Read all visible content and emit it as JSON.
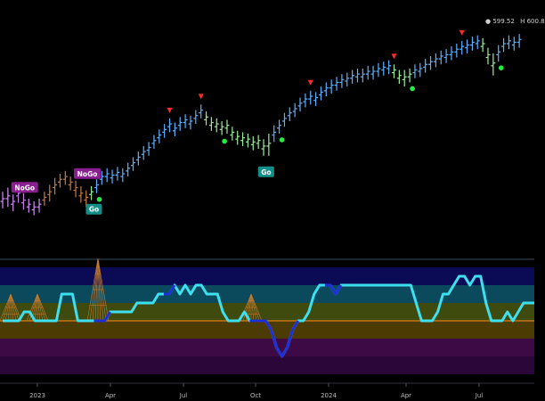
{
  "header": {
    "price_labels": [
      "599.52",
      "600.8"
    ]
  },
  "chart_data": [
    {
      "type": "ohlc",
      "panel": "price",
      "signals": {
        "nogo": [
          {
            "label": "NoGo",
            "i": 2
          },
          {
            "label": "NoGo",
            "i": 14
          }
        ],
        "go": [
          {
            "label": "Go",
            "i": 18
          },
          {
            "label": "Go",
            "i": 51
          }
        ],
        "green_dots": [
          18,
          42,
          53,
          78,
          95
        ],
        "red_triangles": [
          32,
          38,
          59,
          75,
          88
        ]
      },
      "bars": [
        {
          "c": 498,
          "r": 6,
          "col": "#d58bff"
        },
        {
          "c": 500,
          "r": 7,
          "col": "#d58bff"
        },
        {
          "c": 496,
          "r": 6,
          "col": "#d58bff"
        },
        {
          "c": 502,
          "r": 6,
          "col": "#c47be6"
        },
        {
          "c": 497,
          "r": 6,
          "col": "#c47be6"
        },
        {
          "c": 494,
          "r": 5,
          "col": "#d58bff"
        },
        {
          "c": 492,
          "r": 5,
          "col": "#d58bff"
        },
        {
          "c": 494,
          "r": 5,
          "col": "#d58bff"
        },
        {
          "c": 499,
          "r": 5,
          "col": "#c97a3a"
        },
        {
          "c": 503,
          "r": 6,
          "col": "#c97a3a"
        },
        {
          "c": 508,
          "r": 6,
          "col": "#c97a3a"
        },
        {
          "c": 512,
          "r": 5,
          "col": "#c97a3a"
        },
        {
          "c": 514,
          "r": 5,
          "col": "#c97a3a"
        },
        {
          "c": 510,
          "r": 5,
          "col": "#c97a3a"
        },
        {
          "c": 506,
          "r": 6,
          "col": "#c97a3a"
        },
        {
          "c": 502,
          "r": 6,
          "col": "#c97a3a"
        },
        {
          "c": 499,
          "r": 6,
          "col": "#c97a3a"
        },
        {
          "c": 503,
          "r": 5,
          "col": "#9aee9a"
        },
        {
          "c": 508,
          "r": 5,
          "col": "#59b2ff"
        },
        {
          "c": 514,
          "r": 5,
          "col": "#59b2ff"
        },
        {
          "c": 516,
          "r": 5,
          "col": "#59b2ff"
        },
        {
          "c": 515,
          "r": 5,
          "col": "#59b2ff"
        },
        {
          "c": 517,
          "r": 5,
          "col": "#59b2ff"
        },
        {
          "c": 516,
          "r": 5,
          "col": "#59b2ff"
        },
        {
          "c": 520,
          "r": 5,
          "col": "#59b2ff"
        },
        {
          "c": 524,
          "r": 5,
          "col": "#59b2ff"
        },
        {
          "c": 528,
          "r": 5,
          "col": "#59b2ff"
        },
        {
          "c": 532,
          "r": 5,
          "col": "#59b2ff"
        },
        {
          "c": 535,
          "r": 5,
          "col": "#59b2ff"
        },
        {
          "c": 540,
          "r": 5,
          "col": "#59b2ff"
        },
        {
          "c": 544,
          "r": 5,
          "col": "#59b2ff"
        },
        {
          "c": 548,
          "r": 5,
          "col": "#59b2ff"
        },
        {
          "c": 552,
          "r": 5,
          "col": "#59b2ff"
        },
        {
          "c": 549,
          "r": 5,
          "col": "#59b2ff"
        },
        {
          "c": 553,
          "r": 5,
          "col": "#59b2ff"
        },
        {
          "c": 555,
          "r": 5,
          "col": "#59b2ff"
        },
        {
          "c": 554,
          "r": 5,
          "col": "#59b2ff"
        },
        {
          "c": 558,
          "r": 5,
          "col": "#59b2ff"
        },
        {
          "c": 562,
          "r": 5,
          "col": "#59b2ff"
        },
        {
          "c": 557,
          "r": 5,
          "col": "#9aee9a"
        },
        {
          "c": 553,
          "r": 5,
          "col": "#9aee9a"
        },
        {
          "c": 552,
          "r": 5,
          "col": "#9aee9a"
        },
        {
          "c": 550,
          "r": 5,
          "col": "#9aee9a"
        },
        {
          "c": 551,
          "r": 5,
          "col": "#9aee9a"
        },
        {
          "c": 546,
          "r": 5,
          "col": "#9aee9a"
        },
        {
          "c": 543,
          "r": 5,
          "col": "#9aee9a"
        },
        {
          "c": 542,
          "r": 5,
          "col": "#9aee9a"
        },
        {
          "c": 541,
          "r": 5,
          "col": "#9aee9a"
        },
        {
          "c": 539,
          "r": 5,
          "col": "#9aee9a"
        },
        {
          "c": 540,
          "r": 5,
          "col": "#9aee9a"
        },
        {
          "c": 536,
          "r": 6,
          "col": "#9aee9a"
        },
        {
          "c": 538,
          "r": 8,
          "col": "#9aee9a"
        },
        {
          "c": 546,
          "r": 6,
          "col": "#59b2ff"
        },
        {
          "c": 551,
          "r": 5,
          "col": "#59b2ff"
        },
        {
          "c": 556,
          "r": 5,
          "col": "#59b2ff"
        },
        {
          "c": 560,
          "r": 5,
          "col": "#59b2ff"
        },
        {
          "c": 563,
          "r": 5,
          "col": "#59b2ff"
        },
        {
          "c": 567,
          "r": 5,
          "col": "#59b2ff"
        },
        {
          "c": 570,
          "r": 5,
          "col": "#59b2ff"
        },
        {
          "c": 572,
          "r": 5,
          "col": "#59b2ff"
        },
        {
          "c": 571,
          "r": 5,
          "col": "#59b2ff"
        },
        {
          "c": 575,
          "r": 5,
          "col": "#59b2ff"
        },
        {
          "c": 578,
          "r": 5,
          "col": "#59b2ff"
        },
        {
          "c": 580,
          "r": 5,
          "col": "#59b2ff"
        },
        {
          "c": 582,
          "r": 5,
          "col": "#59b2ff"
        },
        {
          "c": 584,
          "r": 5,
          "col": "#59b2ff"
        },
        {
          "c": 585,
          "r": 5,
          "col": "#59b2ff"
        },
        {
          "c": 587,
          "r": 5,
          "col": "#59b2ff"
        },
        {
          "c": 588,
          "r": 5,
          "col": "#59b2ff"
        },
        {
          "c": 588,
          "r": 5,
          "col": "#59b2ff"
        },
        {
          "c": 590,
          "r": 5,
          "col": "#59b2ff"
        },
        {
          "c": 590,
          "r": 5,
          "col": "#59b2ff"
        },
        {
          "c": 592,
          "r": 5,
          "col": "#59b2ff"
        },
        {
          "c": 593,
          "r": 5,
          "col": "#59b2ff"
        },
        {
          "c": 594,
          "r": 5,
          "col": "#59b2ff"
        },
        {
          "c": 591,
          "r": 5,
          "col": "#9aee9a"
        },
        {
          "c": 587,
          "r": 5,
          "col": "#9aee9a"
        },
        {
          "c": 586,
          "r": 6,
          "col": "#9aee9a"
        },
        {
          "c": 588,
          "r": 5,
          "col": "#9aee9a"
        },
        {
          "c": 591,
          "r": 5,
          "col": "#59b2ff"
        },
        {
          "c": 592,
          "r": 5,
          "col": "#59b2ff"
        },
        {
          "c": 595,
          "r": 5,
          "col": "#59b2ff"
        },
        {
          "c": 597,
          "r": 5,
          "col": "#59b2ff"
        },
        {
          "c": 599,
          "r": 5,
          "col": "#59b2ff"
        },
        {
          "c": 601,
          "r": 5,
          "col": "#59b2ff"
        },
        {
          "c": 602,
          "r": 5,
          "col": "#59b2ff"
        },
        {
          "c": 604,
          "r": 5,
          "col": "#59b2ff"
        },
        {
          "c": 606,
          "r": 5,
          "col": "#59b2ff"
        },
        {
          "c": 608,
          "r": 5,
          "col": "#59b2ff"
        },
        {
          "c": 609,
          "r": 5,
          "col": "#59b2ff"
        },
        {
          "c": 611,
          "r": 5,
          "col": "#59b2ff"
        },
        {
          "c": 612,
          "r": 5,
          "col": "#59b2ff"
        },
        {
          "c": 610,
          "r": 5,
          "col": "#9aee9a"
        },
        {
          "c": 602,
          "r": 6,
          "col": "#9aee9a"
        },
        {
          "c": 596,
          "r": 8,
          "col": "#9aee9a"
        },
        {
          "c": 604,
          "r": 6,
          "col": "#59b2ff"
        },
        {
          "c": 610,
          "r": 5,
          "col": "#59b2ff"
        },
        {
          "c": 612,
          "r": 5,
          "col": "#59b2ff"
        },
        {
          "c": 611,
          "r": 5,
          "col": "#59b2ff"
        },
        {
          "c": 613,
          "r": 5,
          "col": "#59b2ff"
        }
      ]
    },
    {
      "type": "line",
      "panel": "oscillator",
      "ylim": [
        -6,
        6
      ],
      "zero": 0,
      "bands": [
        "#0b0b55",
        "#0a4a5c",
        "#3f4a0f",
        "#4d3b04",
        "#3d0a45",
        "#2a0738"
      ],
      "values": [
        0,
        0,
        0,
        0,
        1,
        1,
        0,
        0,
        0,
        0,
        0,
        3,
        3,
        3,
        0,
        0,
        0,
        0,
        0,
        0,
        1,
        1,
        1,
        1,
        1,
        2,
        2,
        2,
        2,
        3,
        3,
        3,
        4,
        3,
        4,
        3,
        4,
        4,
        3,
        3,
        3,
        1,
        0,
        0,
        0,
        1,
        0,
        0,
        0,
        0,
        -1,
        -3,
        -4,
        -3,
        -1,
        0,
        0,
        1,
        3,
        4,
        4,
        4,
        3,
        4,
        4,
        4,
        4,
        4,
        4,
        4,
        4,
        4,
        4,
        4,
        4,
        4,
        4,
        2,
        0,
        0,
        0,
        1,
        3,
        3,
        4,
        5,
        5,
        4,
        5,
        5,
        2,
        0,
        0,
        0,
        1,
        0,
        1,
        2,
        2,
        2
      ],
      "deep_segments": [
        [
          17,
          20
        ],
        [
          30,
          32
        ],
        [
          46,
          55
        ],
        [
          60,
          63
        ]
      ]
    }
  ],
  "xaxis": {
    "labels": [
      "2023",
      "Apr",
      "Jul",
      "Oct",
      "2024",
      "Apr",
      "Jul"
    ]
  }
}
